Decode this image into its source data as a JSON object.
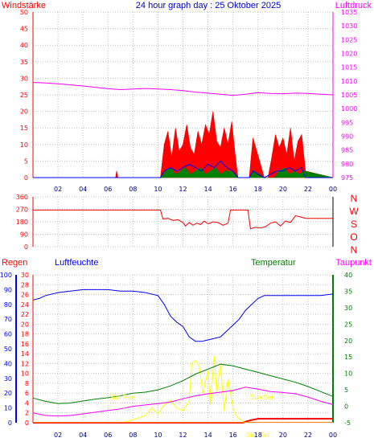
{
  "header": {
    "left_label": "Windstärke",
    "title": "24 hour graph day : 25 Oktober 2025",
    "right_label": "Luftdruck"
  },
  "middle": {
    "compass": [
      "N",
      "W",
      "S",
      "O",
      "N"
    ]
  },
  "lower_header": {
    "regen": "Regen",
    "luftfeuchte": "Luftfeuchte",
    "temperatur": "Temperatur",
    "taupunkt": "Taupunkt"
  },
  "colors": {
    "windstaerke": "#ff0000",
    "luftdruck": "#ff00ff",
    "title": "#0000cc",
    "luftfeuchte": "#0000ff",
    "temperatur": "#008000",
    "taupunkt": "#ff00ff",
    "sun": "#ffff00",
    "regen": "#ff0000",
    "grid": "#c0c0c0"
  },
  "chart_data": [
    {
      "type": "area",
      "x_ticks": [
        "02",
        "04",
        "06",
        "08",
        "10",
        "12",
        "14",
        "16",
        "18",
        "20",
        "22",
        "00"
      ],
      "y_left_ticks": [
        "0",
        "5",
        "10",
        "15",
        "20",
        "25",
        "30",
        "35",
        "40",
        "45",
        "50"
      ],
      "ylim_left": [
        0,
        50
      ],
      "y_right_ticks": [
        "975",
        "980",
        "985",
        "990",
        "995",
        "1000",
        "1005",
        "1010",
        "1015",
        "1020",
        "1025",
        "1030",
        "1035"
      ],
      "ylim_right": [
        975,
        1035
      ],
      "grid": true,
      "series": [
        {
          "name": "Windstärke",
          "axis": "left",
          "x": [
            0,
            6.6,
            6.7,
            6.8,
            10.2,
            10.5,
            10.8,
            11.1,
            11.4,
            11.7,
            12,
            12.3,
            12.6,
            12.9,
            13.2,
            13.5,
            13.8,
            14.1,
            14.4,
            14.7,
            15,
            15.3,
            15.6,
            15.9,
            16.2,
            16.4,
            17.3,
            17.6,
            17.9,
            18.2,
            18.5,
            18.8,
            19.1,
            19.4,
            19.7,
            20,
            20.3,
            20.6,
            20.9,
            21.2,
            21.5,
            21.8,
            24
          ],
          "y": [
            0,
            0,
            2,
            0,
            0,
            10,
            14,
            6,
            15,
            8,
            10,
            16,
            9,
            7,
            14,
            10,
            16,
            13,
            20,
            11,
            9,
            15,
            10,
            17,
            6,
            0,
            0,
            12,
            8,
            4,
            0,
            0,
            6,
            13,
            9,
            12,
            7,
            15,
            5,
            11,
            13,
            2,
            0
          ]
        },
        {
          "name": "Windstärke (avg)",
          "axis": "left",
          "x": [
            0,
            10.2,
            10.5,
            11,
            11.5,
            12,
            12.5,
            13,
            13.5,
            14,
            14.5,
            15,
            15.5,
            16,
            16.4,
            17.3,
            17.6,
            18,
            18.5,
            19,
            19.5,
            20,
            20.5,
            21,
            21.5,
            21.8,
            24
          ],
          "y": [
            0,
            0,
            2,
            3,
            2,
            3,
            4,
            3,
            2,
            4,
            3,
            5,
            3,
            2,
            0,
            0,
            2,
            1,
            0,
            1,
            2,
            2,
            3,
            2,
            3,
            0,
            0
          ]
        },
        {
          "name": "Böen",
          "axis": "left",
          "x": [
            0,
            10.2,
            10.6,
            11,
            11.4,
            11.8,
            12.2,
            12.6,
            13,
            13.4,
            13.8,
            14.2,
            14.6,
            15,
            15.4,
            15.8,
            16.2,
            16.4,
            17.3,
            17.7,
            18.1,
            18.5,
            19.3,
            19.7,
            20.1,
            20.5,
            20.9,
            21.3,
            21.7,
            24
          ],
          "y": [
            0,
            0,
            2,
            3,
            1,
            2,
            3,
            1,
            2,
            3,
            1,
            2,
            3,
            1,
            2,
            2,
            1,
            0,
            0,
            2,
            1,
            0,
            0,
            2,
            3,
            1,
            2,
            1,
            2,
            0
          ]
        },
        {
          "name": "Luftdruck",
          "axis": "right",
          "x": [
            0,
            1,
            2,
            3,
            4,
            5,
            6,
            7,
            8,
            9,
            10,
            11,
            12,
            13,
            14,
            15,
            16,
            17,
            18,
            19,
            20,
            21,
            22,
            23,
            24
          ],
          "y": [
            1009.5,
            1009.3,
            1009,
            1008.6,
            1008.2,
            1007.7,
            1007.2,
            1006.9,
            1007.1,
            1007.3,
            1007.1,
            1006.9,
            1006.5,
            1006,
            1005.6,
            1005.2,
            1004.8,
            1005.2,
            1005.8,
            1005.5,
            1005.4,
            1005.6,
            1005.5,
            1005.2,
            1005
          ]
        }
      ]
    },
    {
      "type": "line",
      "x_ticks": [
        "02",
        "04",
        "06",
        "08",
        "10",
        "12",
        "14",
        "16",
        "18",
        "20",
        "22",
        "00"
      ],
      "y_ticks": [
        "0",
        "90",
        "180",
        "270",
        "360"
      ],
      "ylim": [
        0,
        360
      ],
      "grid": true,
      "series": [
        {
          "name": "Windrichtung",
          "x": [
            0,
            10.2,
            10.4,
            10.8,
            11.2,
            11.6,
            12,
            12.2,
            12.5,
            12.8,
            13.1,
            13.4,
            13.7,
            14,
            14.4,
            14.8,
            15.2,
            15.6,
            15.8,
            16.2,
            17.2,
            17.4,
            17.8,
            18.2,
            18.6,
            19,
            19.4,
            19.8,
            20.2,
            20.6,
            21,
            21.4,
            21.8,
            22.2,
            24
          ],
          "y": [
            265,
            265,
            200,
            205,
            190,
            195,
            175,
            150,
            175,
            155,
            170,
            160,
            185,
            165,
            180,
            175,
            155,
            170,
            265,
            265,
            265,
            130,
            140,
            135,
            145,
            170,
            180,
            150,
            185,
            175,
            225,
            215,
            205,
            205,
            205
          ]
        }
      ]
    },
    {
      "type": "line",
      "x_ticks": [
        "02",
        "04",
        "06",
        "08",
        "10",
        "12",
        "14",
        "16",
        "18",
        "20",
        "22",
        "00"
      ],
      "y_regen_ticks": [
        "0",
        "2",
        "4",
        "6",
        "8",
        "10",
        "12",
        "14",
        "16",
        "18",
        "20",
        "22",
        "24",
        "26",
        "28",
        "30"
      ],
      "ylim_regen": [
        0,
        30
      ],
      "y_feuchte_ticks": [
        "0",
        "10",
        "20",
        "30",
        "40",
        "50",
        "60",
        "70",
        "80",
        "90",
        "100"
      ],
      "ylim_feuchte": [
        0,
        100
      ],
      "y_temp_ticks": [
        "-5",
        "0",
        "5",
        "10",
        "15",
        "20",
        "25",
        "30",
        "35",
        "40"
      ],
      "ylim_temp": [
        -5,
        40
      ],
      "annotations": [
        "Sun Rise",
        "Sun Set",
        "Sun Set"
      ],
      "grid": true,
      "series": [
        {
          "name": "Luftfeuchte",
          "axis": "feuchte",
          "x": [
            0,
            0.5,
            1,
            2,
            3,
            4,
            5,
            6,
            7,
            8,
            9,
            10,
            10.5,
            11,
            11.5,
            12,
            12.5,
            13,
            13.5,
            14,
            14.5,
            15,
            15.5,
            16,
            16.5,
            17,
            17.5,
            18,
            18.5,
            19,
            20,
            21,
            22,
            23,
            24
          ],
          "y": [
            83,
            84,
            86,
            88,
            89,
            90,
            90,
            90,
            89,
            89,
            88,
            86,
            80,
            72,
            68,
            65,
            58,
            55,
            55,
            56,
            57,
            58,
            62,
            66,
            70,
            76,
            80,
            84,
            86,
            86,
            86,
            86,
            86,
            86,
            87
          ]
        },
        {
          "name": "Temperatur",
          "axis": "temp",
          "x": [
            0,
            1,
            2,
            3,
            4,
            5,
            6,
            7,
            8,
            9,
            10,
            11,
            12,
            13,
            14,
            15,
            16,
            17,
            18,
            19,
            20,
            21,
            22,
            23,
            24
          ],
          "y": [
            2.5,
            1.5,
            0.8,
            1,
            1.6,
            2.2,
            2.6,
            3.2,
            4,
            4.3,
            5,
            6.2,
            7.8,
            9.8,
            11.3,
            12.8,
            12.3,
            11.3,
            10.3,
            9.3,
            8.3,
            7.3,
            6,
            4.5,
            3
          ]
        },
        {
          "name": "Taupunkt",
          "axis": "temp",
          "x": [
            0,
            1,
            2,
            3,
            4,
            5,
            6,
            7,
            8,
            9,
            10,
            11,
            12,
            13,
            14,
            15,
            16,
            17,
            18,
            19,
            20,
            21,
            22,
            23,
            24
          ],
          "y": [
            -2,
            -2.8,
            -3,
            -2.8,
            -2.3,
            -1.8,
            -1.3,
            -0.8,
            0,
            0.4,
            0.8,
            1.3,
            2.3,
            3.2,
            3.8,
            4.3,
            4.8,
            5.8,
            5.2,
            4.5,
            4.2,
            3.8,
            2.8,
            1.5,
            0.5
          ]
        },
        {
          "name": "Sonne",
          "axis": "feuchte",
          "x": [
            7.2,
            8,
            9,
            9.5,
            10,
            10.5,
            11,
            11.5,
            12,
            12.5,
            12.7,
            13,
            13.3,
            13.6,
            14,
            14.2,
            14.5,
            14.7,
            15,
            15.3,
            15.6,
            16,
            16.3,
            16.8,
            17.2
          ],
          "y": [
            0,
            2,
            5,
            10,
            6,
            12,
            15,
            10,
            8,
            15,
            40,
            42,
            38,
            20,
            35,
            12,
            45,
            20,
            40,
            8,
            30,
            10,
            4,
            1,
            0
          ]
        },
        {
          "name": "Regen",
          "axis": "regen",
          "x": [
            0,
            16.8,
            17.1,
            17.6,
            18,
            24
          ],
          "y": [
            0,
            0,
            0.3,
            0.6,
            0.8,
            0.8
          ]
        }
      ]
    }
  ]
}
